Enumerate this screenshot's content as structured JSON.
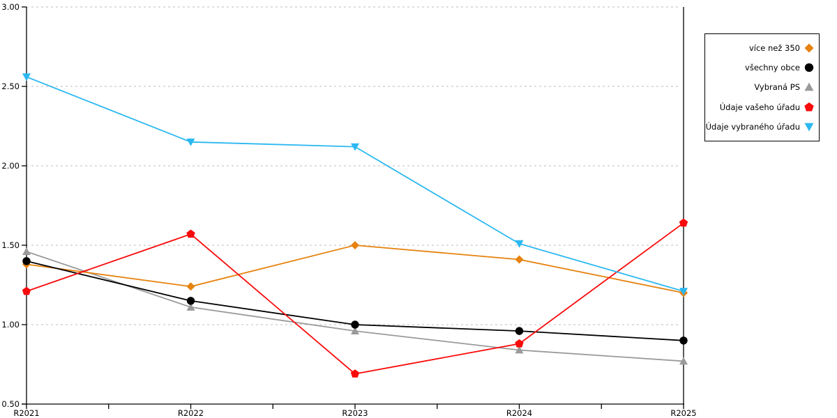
{
  "chart_data": {
    "type": "line",
    "title": "",
    "xlabel": "",
    "ylabel": "",
    "categories": [
      "R2021",
      "R2022",
      "R2023",
      "R2024",
      "R2025"
    ],
    "series": [
      {
        "name": "více než 350",
        "color": "#e6820e",
        "marker": "diamond",
        "values": [
          1.38,
          1.24,
          1.5,
          1.41,
          1.2
        ]
      },
      {
        "name": "všechny obce",
        "color": "#000000",
        "marker": "circle",
        "values": [
          1.4,
          1.15,
          1.0,
          0.96,
          0.9
        ]
      },
      {
        "name": "Vybraná PS",
        "color": "#9a9a9a",
        "marker": "triangle-up",
        "values": [
          1.46,
          1.11,
          0.96,
          0.84,
          0.77
        ]
      },
      {
        "name": "Údaje vašeho úřadu",
        "color": "#f80b0b",
        "marker": "pentagon",
        "values": [
          1.21,
          1.57,
          0.69,
          0.88,
          1.64
        ]
      },
      {
        "name": "Údaje vybraného úřadu",
        "color": "#2bb8f0",
        "marker": "triangle-down",
        "values": [
          2.56,
          2.15,
          2.12,
          1.51,
          1.21
        ]
      }
    ],
    "ylim": [
      0.5,
      3.0
    ],
    "yticks": [
      3.0,
      2.5,
      2.0,
      1.5,
      1.0,
      0.5
    ],
    "ytick_labels": [
      "3.00",
      "2.50",
      "2.00",
      "1.50",
      "1.00",
      "0.50"
    ],
    "grid": "horizontal-dashed",
    "grid_color": "#bdbdbd",
    "axis_color": "#000000",
    "legend_position": "outside-right",
    "draw_order": [
      2,
      0,
      1,
      3,
      4
    ]
  }
}
